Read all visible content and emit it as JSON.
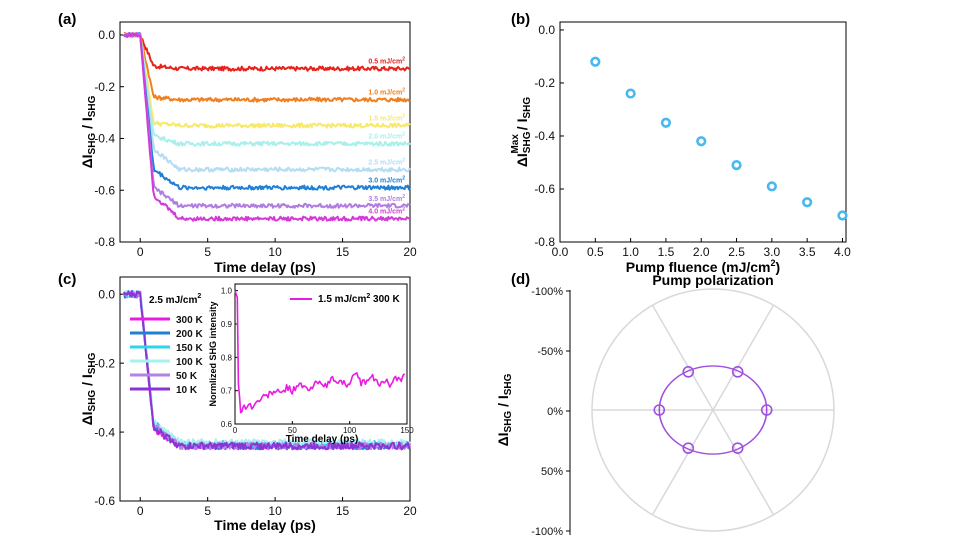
{
  "chart_data": [
    {
      "id": "a",
      "panel_label": "(a)",
      "type": "line",
      "xlabel": "Time delay (ps)",
      "ylabel": "ΔI_SHG / I_SHG",
      "xlim": [
        -1.5,
        20
      ],
      "ylim": [
        -0.8,
        0.05
      ],
      "xticks": [
        0,
        5,
        10,
        15,
        20
      ],
      "yticks": [
        0.0,
        -0.2,
        -0.4,
        -0.6,
        -0.8
      ],
      "xtick_labels": [
        "0",
        "5",
        "10",
        "15",
        "20"
      ],
      "ytick_labels": [
        "0.0",
        "-0.2",
        "-0.4",
        "-0.6",
        "-0.8"
      ],
      "series": [
        {
          "name": "0.5 mJ/cm2",
          "label_main": "0.5 mJ/cm",
          "label_sup": "2",
          "color": "#e8211d",
          "plateau": -0.13,
          "dip": -0.12,
          "rise_shift": 0
        },
        {
          "name": "1.0 mJ/cm2",
          "label_main": "1.0 mJ/cm",
          "label_sup": "2",
          "color": "#f07f1f",
          "plateau": -0.25,
          "dip": -0.24,
          "rise_shift": 0
        },
        {
          "name": "1.5 mJ/cm2",
          "label_main": "1.5 mJ/cm",
          "label_sup": "2",
          "color": "#f8e96a",
          "plateau": -0.35,
          "dip": -0.34,
          "rise_shift": 0
        },
        {
          "name": "2.0 mJ/cm2",
          "label_main": "2.0 mJ/cm",
          "label_sup": "2",
          "color": "#a8f0ec",
          "plateau": -0.42,
          "dip": -0.39,
          "rise_shift": 0
        },
        {
          "name": "2.5 mJ/cm2",
          "label_main": "2.5 mJ/cm",
          "label_sup": "2",
          "color": "#b5dcf5",
          "plateau": -0.52,
          "dip": -0.44,
          "rise_shift": 0
        },
        {
          "name": "3.0 mJ/cm2",
          "label_main": "3.0 mJ/cm",
          "label_sup": "2",
          "color": "#1f80d6",
          "plateau": -0.59,
          "dip": -0.52,
          "rise_shift": 0
        },
        {
          "name": "3.5 mJ/cm2",
          "label_main": "3.5 mJ/cm",
          "label_sup": "2",
          "color": "#b07de0",
          "plateau": -0.66,
          "dip": -0.59,
          "rise_shift": 0
        },
        {
          "name": "4.0 mJ/cm2",
          "label_main": "4.0 mJ/cm",
          "label_sup": "2",
          "color": "#d43ad8",
          "plateau": -0.71,
          "dip": -0.62,
          "rise_shift": 0
        }
      ]
    },
    {
      "id": "b",
      "panel_label": "(b)",
      "type": "scatter",
      "xlabel": "Pump fluence (mJ/cm2)",
      "xlabel_main": "Pump fluence (mJ/cm",
      "xlabel_sup": "2",
      "xlabel_end": ")",
      "ylabel": "ΔI_SHG^Max / I_SHG",
      "xlim": [
        0,
        4.05
      ],
      "ylim": [
        -0.8,
        0.03
      ],
      "xticks": [
        0,
        0.5,
        1,
        1.5,
        2,
        2.5,
        3,
        3.5,
        4
      ],
      "yticks": [
        0.0,
        -0.2,
        -0.4,
        -0.6,
        -0.8
      ],
      "xtick_labels": [
        "0.0",
        "0.5",
        "1.0",
        "1.5",
        "2.0",
        "2.5",
        "3.0",
        "3.5",
        "4.0"
      ],
      "ytick_labels": [
        "0.0",
        "-0.2",
        "-0.4",
        "-0.6",
        "-0.8"
      ],
      "color": "#47b8f0",
      "x": [
        0.5,
        1.0,
        1.5,
        2.0,
        2.5,
        3.0,
        3.5,
        4.0
      ],
      "y": [
        -0.12,
        -0.24,
        -0.35,
        -0.42,
        -0.51,
        -0.59,
        -0.65,
        -0.7
      ]
    },
    {
      "id": "c",
      "panel_label": "(c)",
      "type": "line",
      "xlabel": "Time delay (ps)",
      "ylabel": "ΔI_SHG / I_SHG",
      "xlim": [
        -1.5,
        20
      ],
      "ylim": [
        -0.6,
        0.05
      ],
      "xticks": [
        0,
        5,
        10,
        15,
        20
      ],
      "yticks": [
        0.0,
        -0.2,
        -0.4,
        -0.6
      ],
      "xtick_labels": [
        "0",
        "5",
        "10",
        "15",
        "20"
      ],
      "ytick_labels": [
        "0.0",
        "-0.2",
        "-0.4",
        "-0.6"
      ],
      "legend_title": "2.5 mJ/cm2",
      "legend_title_main": "2.5 mJ/cm",
      "legend_title_sup": "2",
      "series": [
        {
          "name": "300 K",
          "color": "#e81ce0",
          "plateau": -0.44,
          "dip": -0.39
        },
        {
          "name": "200 K",
          "color": "#1f7fd0",
          "plateau": -0.44,
          "dip": -0.38
        },
        {
          "name": "150 K",
          "color": "#2ad6ee",
          "plateau": -0.435,
          "dip": -0.375
        },
        {
          "name": "100 K",
          "color": "#a6f2ef",
          "plateau": -0.43,
          "dip": -0.37
        },
        {
          "name": "50 K",
          "color": "#b482e6",
          "plateau": -0.44,
          "dip": -0.38
        },
        {
          "name": "10 K",
          "color": "#8c35d6",
          "plateau": -0.44,
          "dip": -0.385
        }
      ],
      "inset": {
        "type": "line",
        "legend": "1.5 mJ/cm2  300 K",
        "legend_main": "1.5 mJ/cm",
        "legend_sup": "2",
        "legend_end": "  300 K",
        "xlabel": "Time delay  (ps)",
        "ylabel": "Normlized SHG intensity",
        "xlim": [
          0,
          150
        ],
        "ylim": [
          0.6,
          1.02
        ],
        "xticks": [
          0,
          50,
          100,
          150
        ],
        "yticks": [
          0.6,
          0.7,
          0.8,
          0.9,
          1.0
        ],
        "xtick_labels": [
          "0",
          "50",
          "100",
          "150"
        ],
        "ytick_labels": [
          "0.6",
          "0.7",
          "0.8",
          "0.9",
          "1.0"
        ],
        "color": "#e81ce0",
        "x": [
          0,
          2,
          3,
          5,
          8,
          12,
          16,
          20,
          25,
          30,
          35,
          40,
          45,
          50,
          55,
          60,
          65,
          70,
          75,
          80,
          85,
          90,
          95,
          100,
          105,
          110,
          115,
          120,
          125,
          130,
          135,
          140,
          145,
          148
        ],
        "y": [
          1.0,
          0.98,
          0.72,
          0.64,
          0.65,
          0.66,
          0.65,
          0.67,
          0.68,
          0.69,
          0.7,
          0.69,
          0.71,
          0.7,
          0.72,
          0.71,
          0.7,
          0.72,
          0.73,
          0.71,
          0.74,
          0.72,
          0.73,
          0.71,
          0.76,
          0.72,
          0.73,
          0.74,
          0.72,
          0.73,
          0.72,
          0.74,
          0.73,
          0.75
        ]
      }
    },
    {
      "id": "d",
      "panel_label": "(d)",
      "type": "polar",
      "title": "Pump polarization",
      "ylabel": "ΔI_SHG / I_SHG",
      "r_tick_labels": [
        "-100%",
        "-50%",
        "0%",
        "50%",
        "-100%"
      ],
      "color": "#a050e0",
      "angles_deg": [
        0,
        60,
        120,
        180,
        240,
        300
      ],
      "r_norm": 0.37
    }
  ]
}
